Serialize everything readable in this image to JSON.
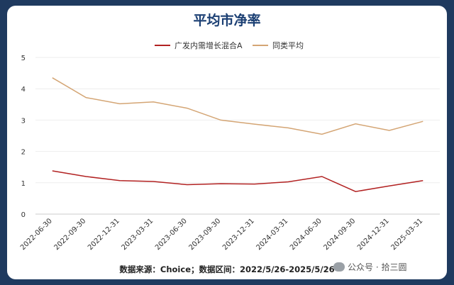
{
  "chart_data": {
    "type": "line",
    "title": "平均市净率",
    "categories": [
      "2022-06-30",
      "2022-09-30",
      "2022-12-31",
      "2023-03-31",
      "2023-06-30",
      "2023-09-30",
      "2023-12-31",
      "2024-03-31",
      "2024-06-30",
      "2024-09-30",
      "2024-12-31",
      "2025-03-31"
    ],
    "series": [
      {
        "name": "广发内需增长混合A",
        "color": "#b22222",
        "values": [
          1.38,
          1.2,
          1.07,
          1.04,
          0.94,
          0.97,
          0.96,
          1.03,
          1.2,
          0.72,
          0.9,
          1.07
        ]
      },
      {
        "name": "同类平均",
        "color": "#d4a574",
        "values": [
          4.35,
          3.72,
          3.52,
          3.58,
          3.38,
          3.0,
          2.87,
          2.75,
          2.55,
          2.88,
          2.67,
          2.96
        ]
      }
    ],
    "ylim": [
      0,
      5
    ],
    "yticks": [
      0,
      1,
      2,
      3,
      4,
      5
    ],
    "grid": true,
    "legend_position": "top-center"
  },
  "source_text": "数据来源：Choice；数据区间：2022/5/26-2025/5/26",
  "watermark": {
    "icon": "wechat-icon",
    "text": "公众号 · 拾三圆"
  }
}
